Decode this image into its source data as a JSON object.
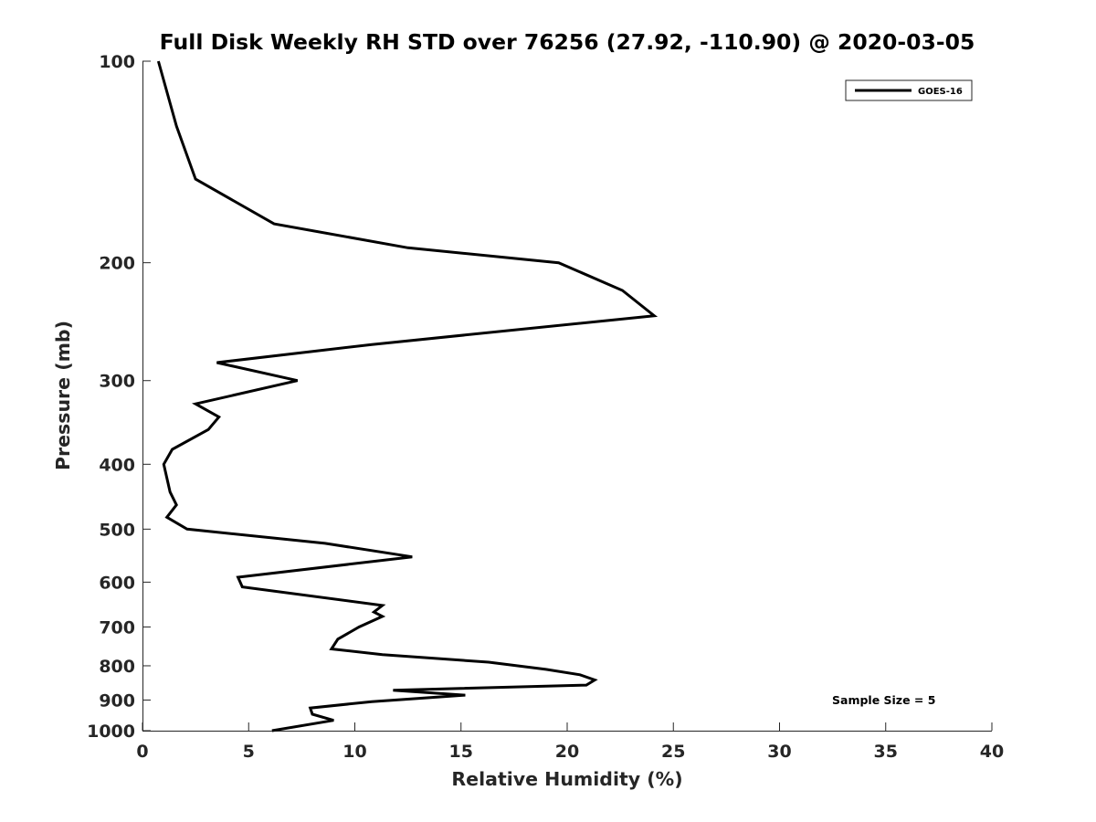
{
  "chart_data": {
    "type": "line",
    "title": "Full Disk Weekly RH STD over 76256 (27.92, -110.90) @ 2020-03-05",
    "xlabel": "Relative Humidity (%)",
    "ylabel": "Pressure (mb)",
    "xlim": [
      0,
      40
    ],
    "ylim": [
      100,
      1000
    ],
    "yscale": "log",
    "y_reversed": true,
    "grid": false,
    "x_ticks": [
      0,
      5,
      10,
      15,
      20,
      25,
      30,
      35,
      40
    ],
    "x_tick_labels": [
      "0",
      "5",
      "10",
      "15",
      "20",
      "25",
      "30",
      "35",
      "40"
    ],
    "y_ticks": [
      100,
      200,
      300,
      400,
      500,
      600,
      700,
      800,
      900,
      1000
    ],
    "y_tick_labels": [
      "100",
      "200",
      "300",
      "400",
      "500",
      "600",
      "700",
      "800",
      "900",
      "1000"
    ],
    "legend": {
      "position": "top-right",
      "entries": [
        "GOES-16"
      ]
    },
    "annotation": "Sample Size = 5",
    "series": [
      {
        "name": "GOES-16",
        "color": "#000000",
        "points": [
          [
            0.75,
            100
          ],
          [
            1.6,
            125
          ],
          [
            2.5,
            150
          ],
          [
            6.2,
            175
          ],
          [
            12.5,
            190
          ],
          [
            19.6,
            200
          ],
          [
            22.6,
            220
          ],
          [
            24.1,
            240
          ],
          [
            10.8,
            265
          ],
          [
            3.5,
            282
          ],
          [
            7.3,
            300
          ],
          [
            2.5,
            325
          ],
          [
            3.6,
            340
          ],
          [
            3.1,
            355
          ],
          [
            1.4,
            380
          ],
          [
            1.0,
            400
          ],
          [
            1.3,
            440
          ],
          [
            1.6,
            460
          ],
          [
            1.15,
            480
          ],
          [
            2.1,
            500
          ],
          [
            8.6,
            525
          ],
          [
            12.7,
            550
          ],
          [
            4.5,
            590
          ],
          [
            4.7,
            610
          ],
          [
            11.3,
            650
          ],
          [
            10.9,
            665
          ],
          [
            11.3,
            675
          ],
          [
            10.2,
            700
          ],
          [
            9.2,
            730
          ],
          [
            8.9,
            755
          ],
          [
            11.3,
            770
          ],
          [
            16.3,
            790
          ],
          [
            19.0,
            810
          ],
          [
            20.6,
            825
          ],
          [
            21.3,
            840
          ],
          [
            20.9,
            855
          ],
          [
            11.8,
            870
          ],
          [
            15.2,
            885
          ],
          [
            10.8,
            905
          ],
          [
            7.9,
            925
          ],
          [
            8.0,
            945
          ],
          [
            9.0,
            965
          ],
          [
            6.1,
            1000
          ]
        ]
      }
    ]
  }
}
